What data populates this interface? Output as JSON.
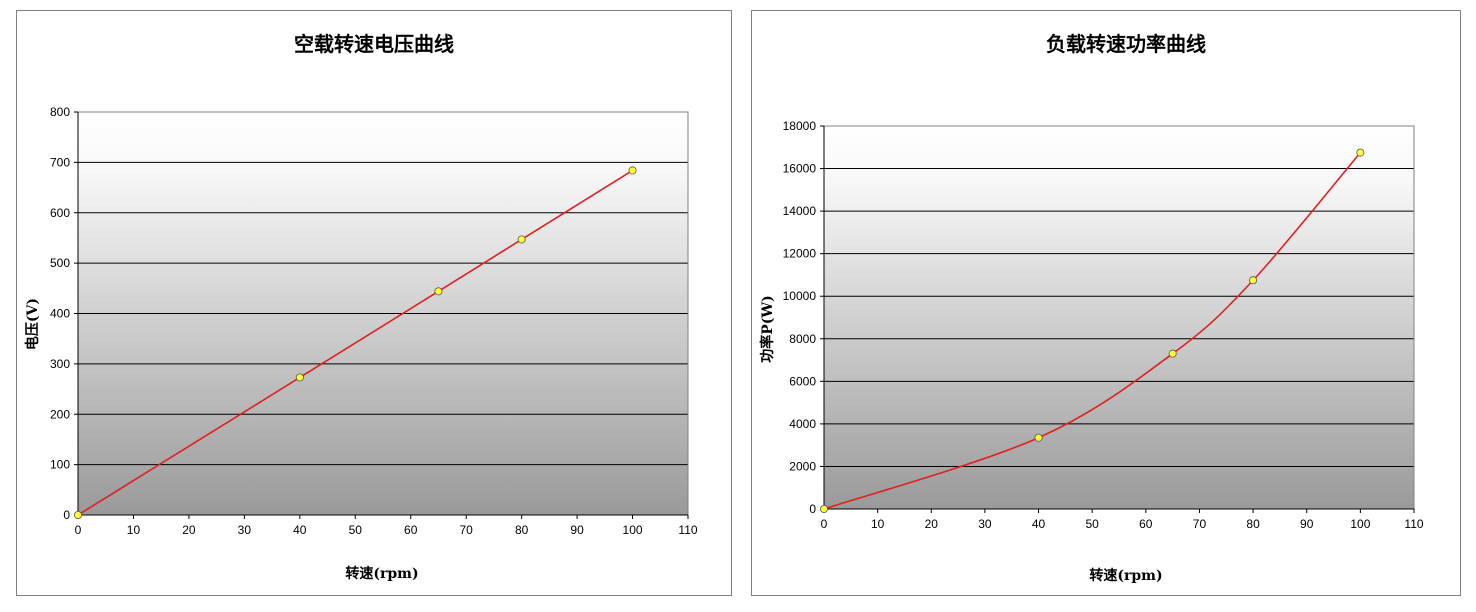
{
  "chart_data": [
    {
      "type": "line",
      "title": "空载转速电压曲线",
      "xlabel": "转速(rpm)",
      "ylabel": "电压(V)",
      "x": [
        0,
        40,
        65,
        80,
        100
      ],
      "series": [
        {
          "values": [
            0,
            273,
            444,
            547,
            684
          ],
          "color": "#e02020"
        }
      ],
      "xlim": [
        0,
        110
      ],
      "ylim": [
        0,
        800
      ],
      "xticks": [
        0,
        10,
        20,
        30,
        40,
        50,
        60,
        70,
        80,
        90,
        100,
        110
      ],
      "yticks": [
        0,
        100,
        200,
        300,
        400,
        500,
        600,
        700,
        800
      ],
      "grid": true,
      "legend": "none",
      "marker_color": "#ffff33"
    },
    {
      "type": "line",
      "title": "负载转速功率曲线",
      "xlabel": "转速(rpm)",
      "ylabel": "功率P(W)",
      "x": [
        0,
        40,
        65,
        80,
        100
      ],
      "series": [
        {
          "values": [
            0,
            3350,
            7300,
            10750,
            16750
          ],
          "color": "#e02020"
        }
      ],
      "xlim": [
        0,
        110
      ],
      "ylim": [
        0,
        18000
      ],
      "xticks": [
        0,
        10,
        20,
        30,
        40,
        50,
        60,
        70,
        80,
        90,
        100,
        110
      ],
      "yticks": [
        0,
        2000,
        4000,
        6000,
        8000,
        10000,
        12000,
        14000,
        16000,
        18000
      ],
      "grid": true,
      "legend": "none",
      "smooth": true,
      "marker_color": "#ffff33"
    }
  ]
}
